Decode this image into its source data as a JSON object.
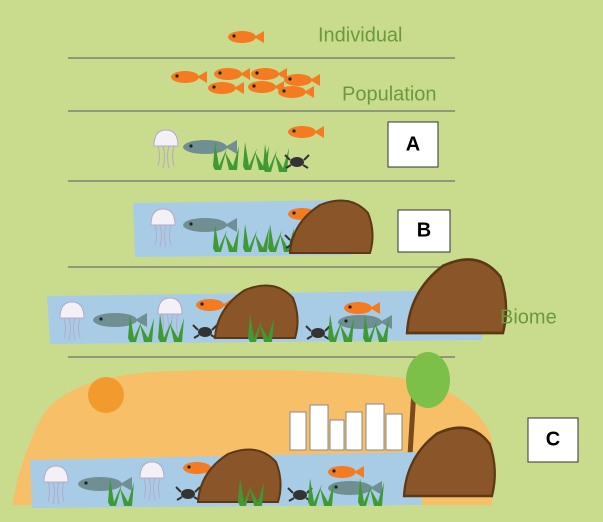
{
  "levels": {
    "individual": "Individual",
    "population": "Population",
    "biome": "Biome"
  },
  "boxes": {
    "a": "A",
    "b": "B",
    "c": "C"
  }
}
